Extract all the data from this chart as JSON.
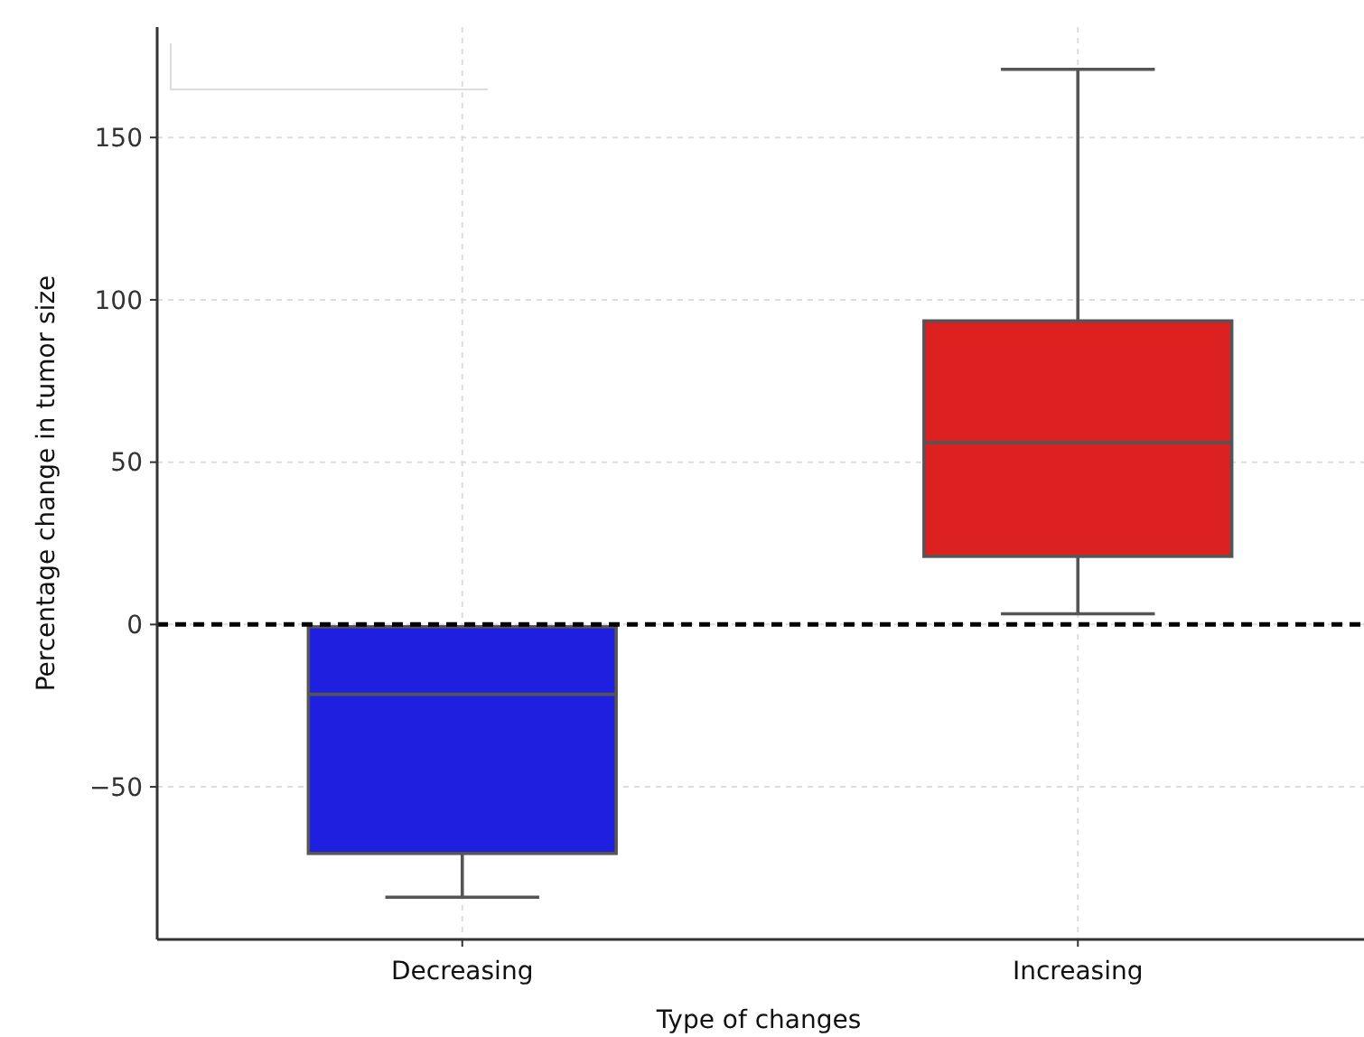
{
  "chart_data": {
    "type": "box",
    "xlabel": "Type of changes",
    "ylabel": "Percentage change in tumor size",
    "categories": [
      "Decreasing",
      "Increasing"
    ],
    "boxes": [
      {
        "low": -84,
        "q1": -70.5,
        "median": -21.5,
        "q3": -0.7,
        "high": -0.7
      },
      {
        "low": 3.3,
        "q1": 21,
        "median": 56,
        "q3": 93.5,
        "high": 171
      }
    ],
    "colors": [
      "#1f1fe0",
      "#dd2020"
    ],
    "ylim": [
      -97,
      184
    ],
    "yticks": [
      -50,
      0,
      50,
      100,
      150
    ],
    "grid": true,
    "ref_lines": [
      {
        "axis": "y",
        "value": 0,
        "color": "#000000",
        "line_style": "dashed"
      }
    ]
  }
}
